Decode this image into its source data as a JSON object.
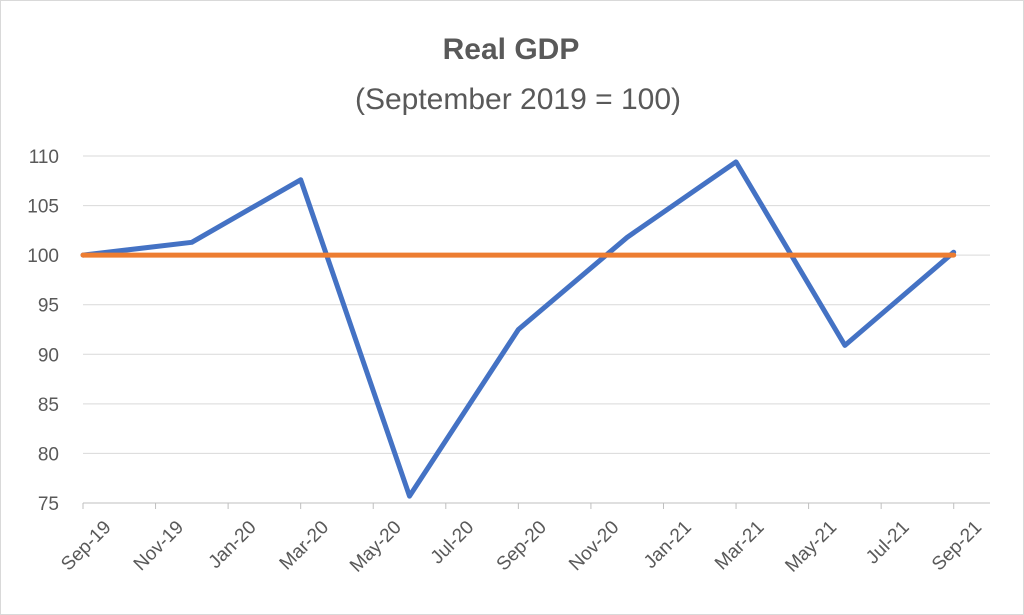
{
  "chart_data": {
    "type": "line",
    "title": "Real GDP",
    "subtitle": "(September 2019 = 100)",
    "xlabel": "",
    "ylabel": "",
    "ylim": [
      75,
      110
    ],
    "yticks": [
      75,
      80,
      85,
      90,
      95,
      100,
      105,
      110
    ],
    "xlim": [
      "2019-09",
      "2021-10"
    ],
    "xtick_labels": [
      "Sep-19",
      "Nov-19",
      "Jan-20",
      "Mar-20",
      "May-20",
      "Jul-20",
      "Sep-20",
      "Nov-20",
      "Jan-21",
      "Mar-21",
      "May-21",
      "Jul-21",
      "Sep-21"
    ],
    "grid": true,
    "legend": "none",
    "series": [
      {
        "color": "#4472c4",
        "points": [
          {
            "x": "2019-09",
            "y": 100
          },
          {
            "x": "2019-12",
            "y": 101.3
          },
          {
            "x": "2020-03",
            "y": 107.6
          },
          {
            "x": "2020-06",
            "y": 75.7
          },
          {
            "x": "2020-09",
            "y": 92.5
          },
          {
            "x": "2020-12",
            "y": 101.8
          },
          {
            "x": "2021-03",
            "y": 109.4
          },
          {
            "x": "2021-06",
            "y": 90.9
          },
          {
            "x": "2021-09",
            "y": 100.3
          }
        ]
      },
      {
        "color": "#ed7d31",
        "points": [
          {
            "x": "2019-09",
            "y": 100
          },
          {
            "x": "2021-09",
            "y": 100
          }
        ]
      }
    ]
  }
}
